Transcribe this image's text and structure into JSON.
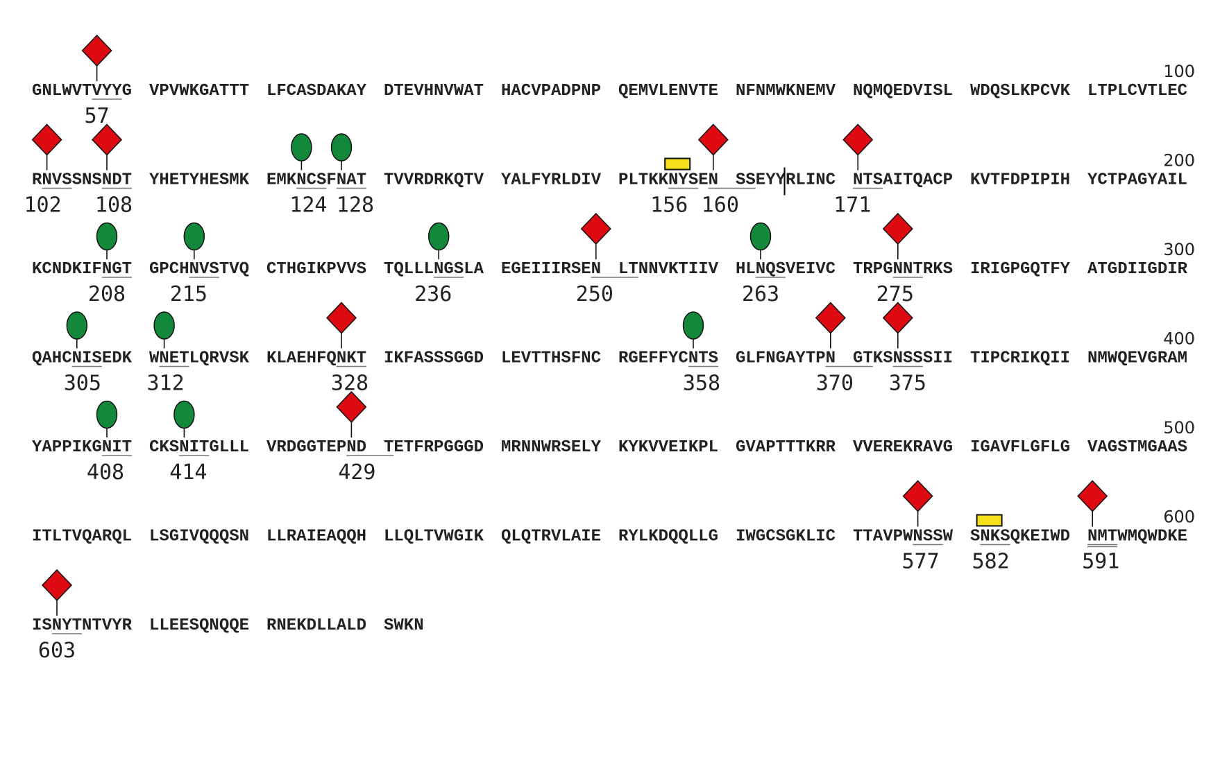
{
  "rows": [
    {
      "number": "100",
      "blocks": [
        "GNLWVTVYYG",
        "VPVWKGATTT",
        "LFCASDAKAY",
        "DTEVHNVWAT",
        "HACVPADPNP",
        "QEMVLENVTE",
        "NFNMWKNEMV",
        "NQMQEDVISL",
        "WDQSLKPCVK",
        "LTPLCVTLEC"
      ]
    },
    {
      "number": "200",
      "blocks": [
        "RNVSSNSNDT",
        "YHETYHESMK",
        "EMKNCSFNAT",
        "TVVRDRKQTV",
        "YALFYRLDIV",
        "PLTKKNYSEN",
        "SSEYYRLINC",
        "NTSAITQACP",
        "KVTFDPIPIH",
        "YCTPAGYAIL"
      ]
    },
    {
      "number": "300",
      "blocks": [
        "KCNDKIFNGT",
        "GPCHNVSTVQ",
        "CTHGIKPVVS",
        "TQLLLNGSLA",
        "EGEIIIRSEN",
        "LTNNVKTIIV",
        "HLNQSVEIVC",
        "TRPGNNTRKS",
        "IRIGPGQTFY",
        "ATGDIIGDIR"
      ]
    },
    {
      "number": "400",
      "blocks": [
        "QAHCNISEDK",
        "WNETLQRVSK",
        "KLAEHFQNKT",
        "IKFASSSGGD",
        "LEVTTHSFNC",
        "RGEFFYCNTS",
        "GLFNGAYTPN",
        "GTKSNSSSII",
        "TIPCRIKQII",
        "NMWQEVGRAM"
      ]
    },
    {
      "number": "500",
      "blocks": [
        "YAPPIKGNIT",
        "CKSNITGLLL",
        "VRDGGTEPND",
        "TETFRPGGGD",
        "MRNNWRSELY",
        "KYKVVEIKPL",
        "GVAPTTTKRR",
        "VVEREKRAVG",
        "IGAVFLGFLG",
        "VAGSTMGAAS"
      ]
    },
    {
      "number": "600",
      "blocks": [
        "ITLTVQARQL",
        "LSGIVQQQSN",
        "LLRAIEAQQH",
        "LLQLTVWGIK",
        "QLQTRVLAIE",
        "RYLKDQQLLG",
        "IWGCSGKLIC",
        "TTAVPWNSSW",
        "SNKSQKEIWD",
        "NMTWMQWDKE"
      ]
    },
    {
      "number": "",
      "blocks": [
        "ISNYTNTVYR",
        "LLEESQNQQE",
        "RNEKDLLALD",
        "SWKN"
      ]
    }
  ],
  "sites": [
    {
      "label": "57",
      "row": 0,
      "start": 6,
      "len": 3,
      "marker": "diamond",
      "label_dx": 0,
      "line": "single"
    },
    {
      "label": "102",
      "row": 1,
      "start": 1,
      "len": 3,
      "marker": "diamond",
      "label_dx": -6,
      "line": "single"
    },
    {
      "label": "108",
      "row": 1,
      "start": 7,
      "len": 3,
      "marker": "diamond",
      "label_dx": 10,
      "line": "single"
    },
    {
      "label": "124",
      "row": 1,
      "start": 23,
      "len": 3,
      "marker": "oval",
      "label_dx": 10,
      "line": "single"
    },
    {
      "label": "128",
      "row": 1,
      "start": 27,
      "len": 3,
      "marker": "oval",
      "label_dx": 20,
      "line": "single"
    },
    {
      "label": "156",
      "row": 1,
      "start": 55,
      "len": 3,
      "marker": "rect",
      "label_dx": -6,
      "line": "single"
    },
    {
      "label": "160",
      "row": 1,
      "start": 59,
      "len": 3,
      "marker": "diamond",
      "label_dx": 10,
      "line": "single"
    },
    {
      "label": "171",
      "row": 1,
      "start": 70,
      "len": 3,
      "marker": "diamond",
      "label_dx": -8,
      "line": "single"
    },
    {
      "label": "208",
      "row": 2,
      "start": 7,
      "len": 3,
      "marker": "oval",
      "label_dx": 0,
      "line": "single"
    },
    {
      "label": "215",
      "row": 2,
      "start": 14,
      "len": 3,
      "marker": "oval",
      "label_dx": -8,
      "line": "single"
    },
    {
      "label": "236",
      "row": 2,
      "start": 35,
      "len": 3,
      "marker": "oval",
      "label_dx": -8,
      "line": "single"
    },
    {
      "label": "250",
      "row": 2,
      "start": 49,
      "len": 3,
      "marker": "diamond",
      "label_dx": -2,
      "line": "single"
    },
    {
      "label": "263",
      "row": 2,
      "start": 62,
      "len": 3,
      "marker": "oval",
      "label_dx": 0,
      "line": "single"
    },
    {
      "label": "275",
      "row": 2,
      "start": 74,
      "len": 3,
      "marker": "diamond",
      "label_dx": -4,
      "line": "single"
    },
    {
      "label": "305",
      "row": 3,
      "start": 4,
      "len": 3,
      "marker": "oval",
      "label_dx": 8,
      "line": "single"
    },
    {
      "label": "312",
      "row": 3,
      "start": 11,
      "len": 3,
      "marker": "oval",
      "label_dx": 2,
      "line": "single"
    },
    {
      "label": "328",
      "row": 3,
      "start": 27,
      "len": 3,
      "marker": "diamond",
      "label_dx": 12,
      "line": "single"
    },
    {
      "label": "358",
      "row": 3,
      "start": 57,
      "len": 3,
      "marker": "oval",
      "label_dx": 12,
      "line": "single"
    },
    {
      "label": "370",
      "row": 3,
      "start": 69,
      "len": 3,
      "marker": "diamond",
      "label_dx": 6,
      "line": "single"
    },
    {
      "label": "375",
      "row": 3,
      "start": 74,
      "len": 3,
      "marker": "diamond",
      "label_dx": 14,
      "line": "single"
    },
    {
      "label": "408",
      "row": 4,
      "start": 7,
      "len": 3,
      "marker": "oval",
      "label_dx": -2,
      "line": "single"
    },
    {
      "label": "414",
      "row": 4,
      "start": 13,
      "len": 3,
      "marker": "oval",
      "label_dx": 6,
      "line": "single"
    },
    {
      "label": "429",
      "row": 4,
      "start": 28,
      "len": 3,
      "marker": "diamond",
      "label_dx": 8,
      "line": "single"
    },
    {
      "label": "577",
      "row": 5,
      "start": 76,
      "len": 3,
      "marker": "diamond",
      "label_dx": 4,
      "line": "single"
    },
    {
      "label": "582",
      "row": 5,
      "start": 81,
      "len": 3,
      "marker": "rect",
      "label_dx": 8,
      "line": "single"
    },
    {
      "label": "591",
      "row": 5,
      "start": 90,
      "len": 3,
      "marker": "diamond",
      "label_dx": 12,
      "line": "double"
    },
    {
      "label": "603",
      "row": 6,
      "start": 2,
      "len": 3,
      "marker": "diamond",
      "label_dx": 0,
      "line": "single"
    }
  ],
  "cleavage_marks": [
    {
      "row": 1,
      "after_index": 65
    }
  ],
  "colors": {
    "text": "#222222",
    "underline": "#777777",
    "diamond_fill": "#dd0a12",
    "oval_fill": "#13883a",
    "rect_fill": "#f5e01a",
    "stroke": "#111111"
  },
  "marker_names": {
    "diamond": "red-diamond-glycan-icon",
    "oval": "green-oval-glycan-icon",
    "rect": "yellow-rectangle-glycan-icon"
  }
}
